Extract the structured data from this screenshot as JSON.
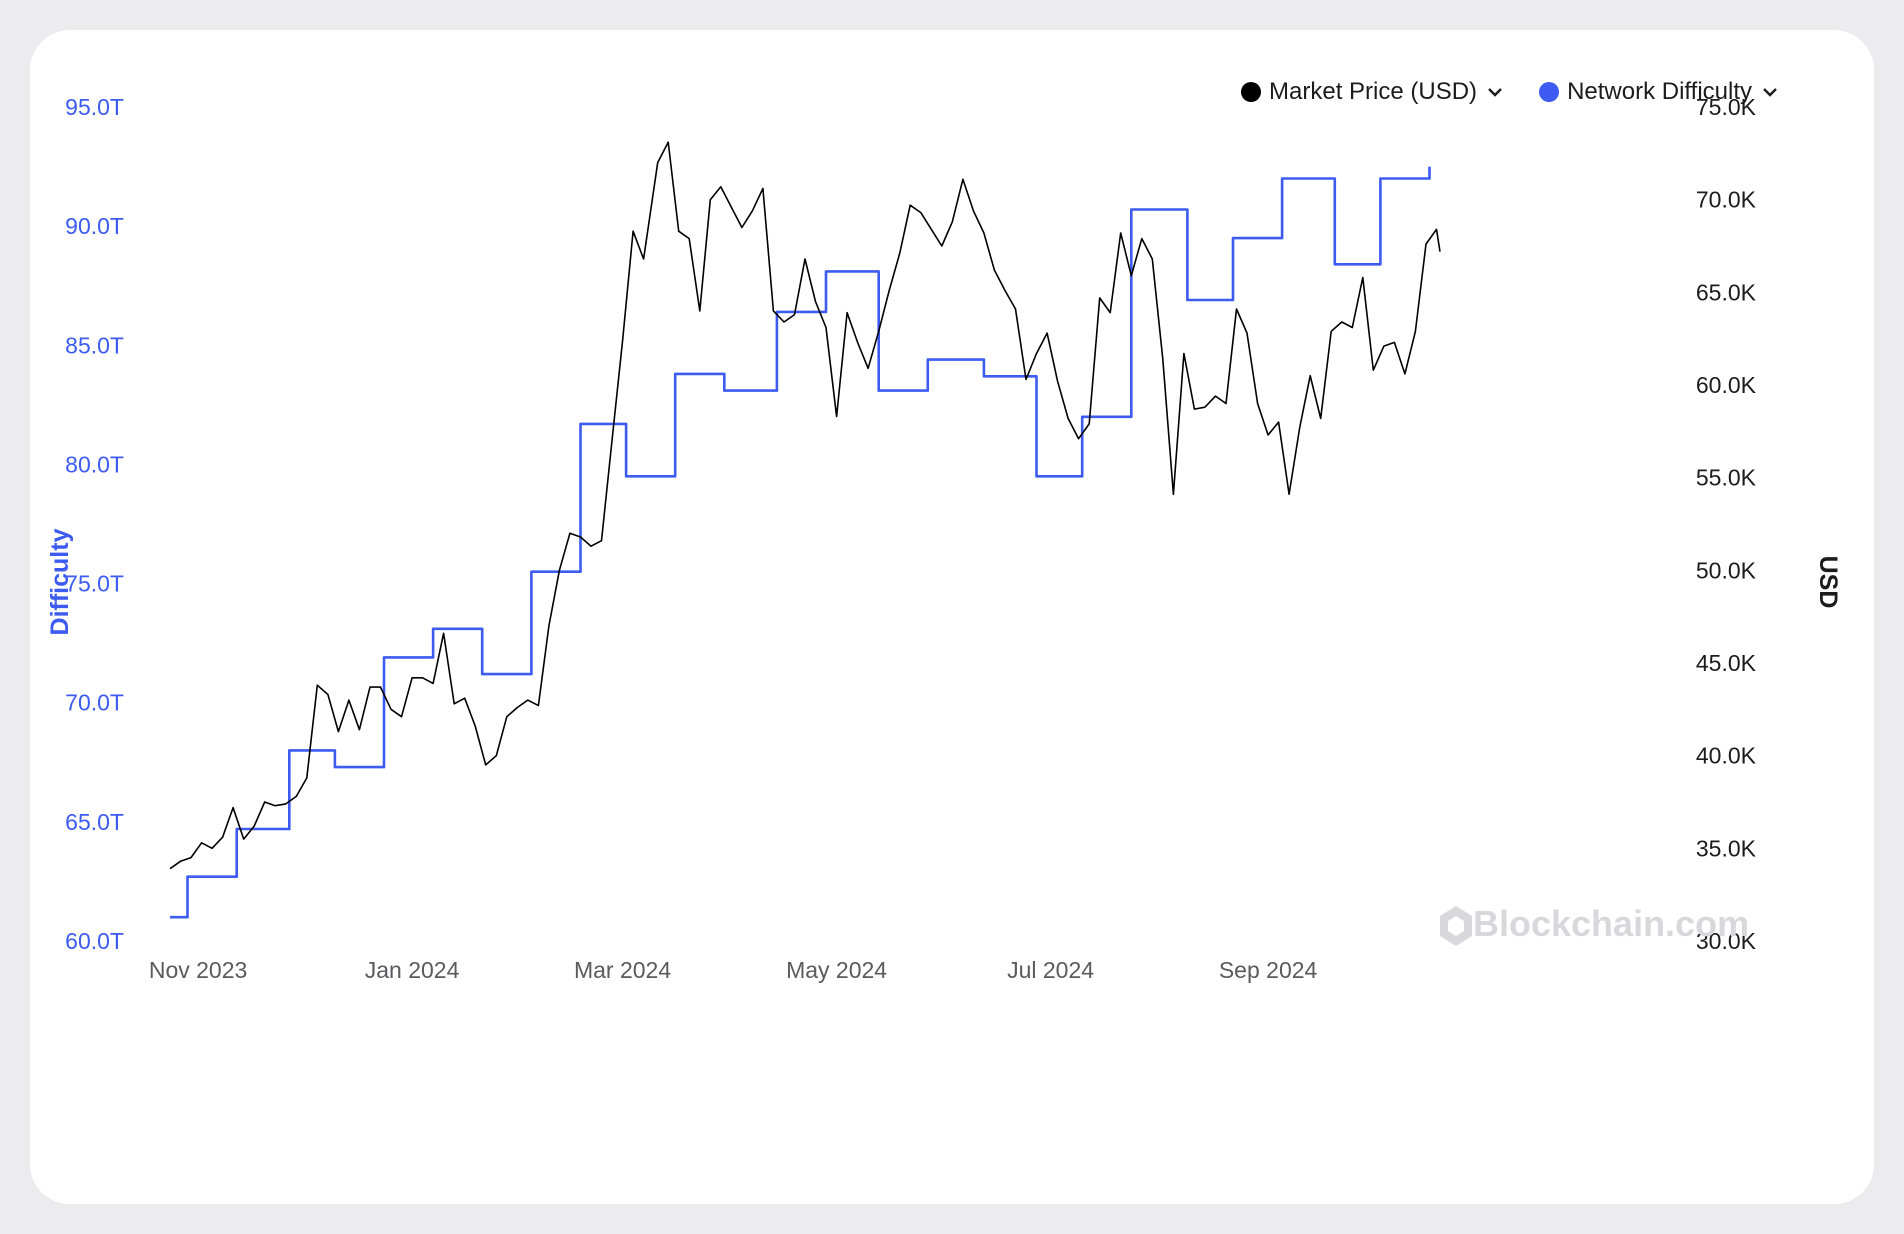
{
  "legend": {
    "market_price_label": "Market Price (USD)",
    "network_difficulty_label": "Network Difficulty"
  },
  "watermark": "Blockchain.com",
  "colors": {
    "difficulty": "#3d5bf0",
    "price": "#000000"
  },
  "chart_data": {
    "type": "line",
    "xlabel": "",
    "x_ticks": [
      "Nov 2023",
      "Jan 2024",
      "Mar 2024",
      "May 2024",
      "Jul 2024",
      "Sep 2024"
    ],
    "x_range": [
      "2023-10-24",
      "2024-10-20"
    ],
    "y_left": {
      "label": "Difficulty",
      "ticks": [
        "60.0T",
        "65.0T",
        "70.0T",
        "75.0T",
        "80.0T",
        "85.0T",
        "90.0T",
        "95.0T"
      ],
      "range": [
        60,
        95
      ],
      "unit": "T"
    },
    "y_right": {
      "label": "USD",
      "ticks": [
        "30.0K",
        "35.0K",
        "40.0K",
        "45.0K",
        "50.0K",
        "55.0K",
        "60.0K",
        "65.0K",
        "70.0K",
        "75.0K"
      ],
      "range": [
        30000,
        75000
      ]
    },
    "series": [
      {
        "name": "Network Difficulty",
        "axis": "left",
        "step": true,
        "points": [
          [
            "2023-10-24",
            61.0
          ],
          [
            "2023-10-29",
            62.7
          ],
          [
            "2023-11-12",
            64.7
          ],
          [
            "2023-11-27",
            68.0
          ],
          [
            "2023-12-10",
            67.3
          ],
          [
            "2023-12-24",
            71.9
          ],
          [
            "2024-01-07",
            73.1
          ],
          [
            "2024-01-21",
            71.2
          ],
          [
            "2024-02-04",
            75.5
          ],
          [
            "2024-02-18",
            81.7
          ],
          [
            "2024-03-02",
            79.5
          ],
          [
            "2024-03-16",
            83.8
          ],
          [
            "2024-03-30",
            83.1
          ],
          [
            "2024-04-14",
            86.4
          ],
          [
            "2024-04-28",
            88.1
          ],
          [
            "2024-05-13",
            83.1
          ],
          [
            "2024-05-27",
            84.4
          ],
          [
            "2024-06-12",
            83.7
          ],
          [
            "2024-06-27",
            79.5
          ],
          [
            "2024-07-10",
            82.0
          ],
          [
            "2024-07-24",
            90.7
          ],
          [
            "2024-08-09",
            86.9
          ],
          [
            "2024-08-22",
            89.5
          ],
          [
            "2024-09-05",
            92.0
          ],
          [
            "2024-09-20",
            88.4
          ],
          [
            "2024-10-03",
            92.0
          ],
          [
            "2024-10-17",
            92.5
          ]
        ]
      },
      {
        "name": "Market Price (USD)",
        "axis": "right",
        "points": [
          [
            "2023-10-24",
            33900
          ],
          [
            "2023-10-27",
            34300
          ],
          [
            "2023-10-30",
            34500
          ],
          [
            "2023-11-02",
            35300
          ],
          [
            "2023-11-05",
            35000
          ],
          [
            "2023-11-08",
            35600
          ],
          [
            "2023-11-11",
            37200
          ],
          [
            "2023-11-14",
            35500
          ],
          [
            "2023-11-17",
            36200
          ],
          [
            "2023-11-20",
            37500
          ],
          [
            "2023-11-23",
            37300
          ],
          [
            "2023-11-26",
            37400
          ],
          [
            "2023-11-29",
            37800
          ],
          [
            "2023-12-02",
            38800
          ],
          [
            "2023-12-05",
            43800
          ],
          [
            "2023-12-08",
            43300
          ],
          [
            "2023-12-11",
            41300
          ],
          [
            "2023-12-14",
            43000
          ],
          [
            "2023-12-17",
            41400
          ],
          [
            "2023-12-20",
            43700
          ],
          [
            "2023-12-23",
            43700
          ],
          [
            "2023-12-26",
            42500
          ],
          [
            "2023-12-29",
            42100
          ],
          [
            "2024-01-01",
            44200
          ],
          [
            "2024-01-04",
            44200
          ],
          [
            "2024-01-07",
            43900
          ],
          [
            "2024-01-10",
            46600
          ],
          [
            "2024-01-13",
            42800
          ],
          [
            "2024-01-16",
            43100
          ],
          [
            "2024-01-19",
            41600
          ],
          [
            "2024-01-22",
            39500
          ],
          [
            "2024-01-25",
            40000
          ],
          [
            "2024-01-28",
            42100
          ],
          [
            "2024-01-31",
            42600
          ],
          [
            "2024-02-03",
            43000
          ],
          [
            "2024-02-06",
            42700
          ],
          [
            "2024-02-09",
            47000
          ],
          [
            "2024-02-12",
            50000
          ],
          [
            "2024-02-15",
            52000
          ],
          [
            "2024-02-18",
            51800
          ],
          [
            "2024-02-21",
            51300
          ],
          [
            "2024-02-24",
            51600
          ],
          [
            "2024-02-27",
            57000
          ],
          [
            "2024-03-01",
            62400
          ],
          [
            "2024-03-04",
            68300
          ],
          [
            "2024-03-07",
            66800
          ],
          [
            "2024-03-11",
            72000
          ],
          [
            "2024-03-14",
            73100
          ],
          [
            "2024-03-17",
            68300
          ],
          [
            "2024-03-20",
            67900
          ],
          [
            "2024-03-23",
            64000
          ],
          [
            "2024-03-26",
            70000
          ],
          [
            "2024-03-29",
            70700
          ],
          [
            "2024-04-01",
            69600
          ],
          [
            "2024-04-04",
            68500
          ],
          [
            "2024-04-07",
            69400
          ],
          [
            "2024-04-10",
            70600
          ],
          [
            "2024-04-13",
            64000
          ],
          [
            "2024-04-16",
            63400
          ],
          [
            "2024-04-19",
            63800
          ],
          [
            "2024-04-22",
            66800
          ],
          [
            "2024-04-25",
            64500
          ],
          [
            "2024-04-28",
            63100
          ],
          [
            "2024-05-01",
            58300
          ],
          [
            "2024-05-04",
            63900
          ],
          [
            "2024-05-07",
            62300
          ],
          [
            "2024-05-10",
            60900
          ],
          [
            "2024-05-13",
            62900
          ],
          [
            "2024-05-16",
            65100
          ],
          [
            "2024-05-19",
            67100
          ],
          [
            "2024-05-22",
            69700
          ],
          [
            "2024-05-25",
            69300
          ],
          [
            "2024-05-28",
            68400
          ],
          [
            "2024-05-31",
            67500
          ],
          [
            "2024-06-03",
            68800
          ],
          [
            "2024-06-06",
            71100
          ],
          [
            "2024-06-09",
            69400
          ],
          [
            "2024-06-12",
            68200
          ],
          [
            "2024-06-15",
            66200
          ],
          [
            "2024-06-18",
            65100
          ],
          [
            "2024-06-21",
            64100
          ],
          [
            "2024-06-24",
            60300
          ],
          [
            "2024-06-27",
            61700
          ],
          [
            "2024-06-30",
            62800
          ],
          [
            "2024-07-03",
            60200
          ],
          [
            "2024-07-06",
            58200
          ],
          [
            "2024-07-09",
            57100
          ],
          [
            "2024-07-12",
            57900
          ],
          [
            "2024-07-15",
            64700
          ],
          [
            "2024-07-18",
            63900
          ],
          [
            "2024-07-21",
            68200
          ],
          [
            "2024-07-24",
            65900
          ],
          [
            "2024-07-27",
            67900
          ],
          [
            "2024-07-30",
            66800
          ],
          [
            "2024-08-02",
            61400
          ],
          [
            "2024-08-05",
            54100
          ],
          [
            "2024-08-08",
            61700
          ],
          [
            "2024-08-11",
            58700
          ],
          [
            "2024-08-14",
            58800
          ],
          [
            "2024-08-17",
            59400
          ],
          [
            "2024-08-20",
            59000
          ],
          [
            "2024-08-23",
            64100
          ],
          [
            "2024-08-26",
            62800
          ],
          [
            "2024-08-29",
            59000
          ],
          [
            "2024-09-01",
            57300
          ],
          [
            "2024-09-04",
            58000
          ],
          [
            "2024-09-07",
            54100
          ],
          [
            "2024-09-10",
            57700
          ],
          [
            "2024-09-13",
            60500
          ],
          [
            "2024-09-16",
            58200
          ],
          [
            "2024-09-19",
            62900
          ],
          [
            "2024-09-22",
            63400
          ],
          [
            "2024-09-25",
            63100
          ],
          [
            "2024-09-28",
            65800
          ],
          [
            "2024-10-01",
            60800
          ],
          [
            "2024-10-04",
            62100
          ],
          [
            "2024-10-07",
            62300
          ],
          [
            "2024-10-10",
            60600
          ],
          [
            "2024-10-13",
            62900
          ],
          [
            "2024-10-16",
            67600
          ],
          [
            "2024-10-19",
            68400
          ],
          [
            "2024-10-20",
            67200
          ]
        ]
      }
    ]
  }
}
